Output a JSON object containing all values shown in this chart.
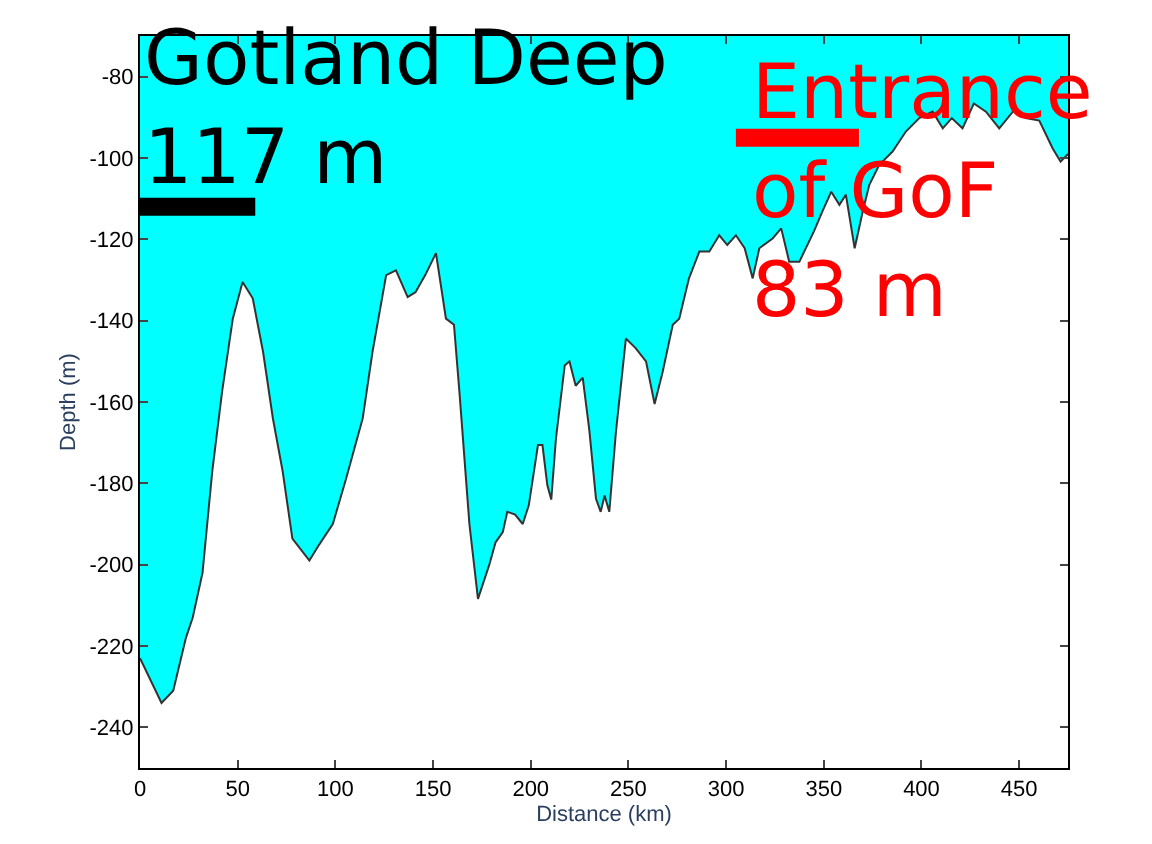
{
  "chart_data": {
    "type": "area",
    "xlabel": "Distance (km)",
    "ylabel": "Depth (m)",
    "xlim": [
      0,
      475
    ],
    "ylim": [
      -250,
      -70
    ],
    "xticks": [
      0,
      50,
      100,
      150,
      200,
      250,
      300,
      350,
      400,
      450
    ],
    "yticks": [
      -240,
      -220,
      -200,
      -180,
      -160,
      -140,
      -120,
      -100,
      -80
    ],
    "series": [
      {
        "color": "#00ffff",
        "x": [
          0,
          11,
          17,
          23.5,
          27,
          32,
          37,
          42,
          47.5,
          52.5,
          57.7,
          63,
          68,
          73,
          78,
          86.7,
          91.8,
          98.7,
          105.4,
          114,
          119,
          126,
          131,
          137,
          141,
          146,
          151.5,
          156.6,
          160.7,
          163.5,
          168.6,
          173,
          178.8,
          182,
          185.7,
          188,
          192,
          195.9,
          199,
          203.7,
          206,
          208.5,
          210.5,
          212.9,
          217.4,
          219.8,
          223,
          226.6,
          230,
          233.4,
          235.8,
          237.8,
          240.2,
          243.6,
          248.7,
          253.8,
          259,
          263.4,
          267.5,
          272.7,
          276,
          281,
          286.3,
          291.4,
          296.5,
          300.6,
          305,
          309.5,
          313.6,
          317,
          323.8,
          328.2,
          332.3,
          337.5,
          345,
          349.4,
          353.8,
          358,
          361.3,
          365.8,
          369.9,
          373.3,
          378.4,
          385.2,
          392,
          398.9,
          405.7,
          410.9,
          415.5,
          421,
          426.8,
          433,
          439.8,
          448.3,
          453.4,
          460.3,
          467.1,
          471.2,
          475
        ],
        "values": [
          -223,
          -234,
          -231,
          -218,
          -213,
          -202,
          -177,
          -157.5,
          -139.5,
          -130.5,
          -134.5,
          -147.7,
          -164,
          -177,
          -193.6,
          -199,
          -195,
          -190,
          -179,
          -164,
          -147.7,
          -128.8,
          -127.6,
          -134.2,
          -133,
          -128.8,
          -123.4,
          -139.5,
          -141,
          -157.5,
          -190,
          -208.4,
          -200,
          -194.5,
          -192,
          -187,
          -187.7,
          -190,
          -185.4,
          -170.6,
          -170.6,
          -180.5,
          -184,
          -169,
          -151,
          -150,
          -156,
          -154,
          -167,
          -183.8,
          -187,
          -183,
          -187,
          -167.4,
          -144.4,
          -146.8,
          -150,
          -160.5,
          -152.6,
          -141,
          -139.5,
          -129.6,
          -123,
          -123,
          -119,
          -121.4,
          -119,
          -122.2,
          -129.6,
          -122.2,
          -119.8,
          -117.3,
          -125.5,
          -125.5,
          -118,
          -113,
          -108.3,
          -111.5,
          -109,
          -122.2,
          -113.2,
          -106.6,
          -101.7,
          -98.4,
          -93.5,
          -90.2,
          -88.6,
          -92.7,
          -90.2,
          -92.7,
          -86.6,
          -88.6,
          -92.7,
          -87.7,
          -90.2,
          -90.8,
          -97.6,
          -100.9,
          -99
        ]
      },
      {
        "type": "line",
        "color": "#000000",
        "x": [
          0,
          59
        ],
        "values": [
          -112,
          -112
        ]
      },
      {
        "type": "line",
        "color": "#ff0000",
        "x": [
          305,
          368
        ],
        "values": [
          -95,
          -95
        ]
      }
    ],
    "annotations": [
      {
        "text": "Gotland Deep\n117 m"
      },
      {
        "text": "Entrance\nof GoF\n83 m"
      }
    ]
  }
}
